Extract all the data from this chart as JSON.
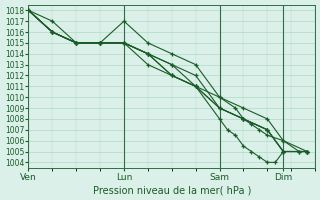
{
  "xlabel": "Pression niveau de la mer( hPa )",
  "ylim": [
    1003.5,
    1018.5
  ],
  "yticks": [
    1004,
    1005,
    1006,
    1007,
    1008,
    1009,
    1010,
    1011,
    1012,
    1013,
    1014,
    1015,
    1016,
    1017,
    1018
  ],
  "xlim": [
    0,
    216
  ],
  "xtick_positions": [
    0,
    72,
    144,
    192
  ],
  "xtick_labels": [
    "Ven",
    "Lun",
    "Sam",
    "Dim"
  ],
  "vline_positions": [
    0,
    72,
    144,
    192
  ],
  "background_color": "#daf0e8",
  "grid_color": "#b0d8c8",
  "line_color": "#1a5c28",
  "series": [
    {
      "x": [
        0,
        18,
        36,
        54,
        72,
        90,
        108,
        126,
        144,
        162,
        180,
        192,
        210
      ],
      "y": [
        1018,
        1016,
        1015,
        1015,
        1015,
        1013,
        1012,
        1011,
        1009,
        1008,
        1007,
        1005,
        1005
      ]
    },
    {
      "x": [
        0,
        18,
        36,
        54,
        72,
        90,
        108,
        126,
        144,
        162,
        180,
        192,
        210
      ],
      "y": [
        1018,
        1017,
        1015,
        1015,
        1015,
        1014,
        1013,
        1012,
        1009,
        1008,
        1007,
        1005,
        1005
      ]
    },
    {
      "x": [
        0,
        18,
        36,
        54,
        72,
        90,
        108,
        126,
        144,
        162,
        180,
        192,
        210
      ],
      "y": [
        1018,
        1016,
        1015,
        1015,
        1015,
        1014,
        1013,
        1011,
        1009,
        1008,
        1007,
        1005,
        1005
      ]
    },
    {
      "x": [
        0,
        18,
        36,
        54,
        72,
        90,
        108,
        126,
        144,
        162,
        180,
        192,
        210
      ],
      "y": [
        1018,
        1016,
        1015,
        1015,
        1017,
        1015,
        1014,
        1013,
        1010,
        1009,
        1008,
        1006,
        1005
      ]
    },
    {
      "x": [
        0,
        18,
        36,
        54,
        72,
        90,
        108,
        126,
        144,
        156,
        162,
        168,
        174,
        180,
        192,
        204,
        210
      ],
      "y": [
        1018,
        1016,
        1015,
        1015,
        1015,
        1014,
        1012,
        1011,
        1010,
        1009,
        1008,
        1007.5,
        1007,
        1006.5,
        1006,
        1005,
        1005
      ]
    },
    {
      "x": [
        0,
        18,
        36,
        54,
        72,
        90,
        108,
        126,
        144,
        150,
        156,
        162,
        168,
        174,
        180,
        186,
        192,
        204,
        210
      ],
      "y": [
        1018,
        1016,
        1015,
        1015,
        1015,
        1014,
        1012,
        1011,
        1008,
        1007,
        1006.5,
        1005.5,
        1005,
        1004.5,
        1004,
        1004,
        1005,
        1005,
        1005
      ]
    }
  ]
}
